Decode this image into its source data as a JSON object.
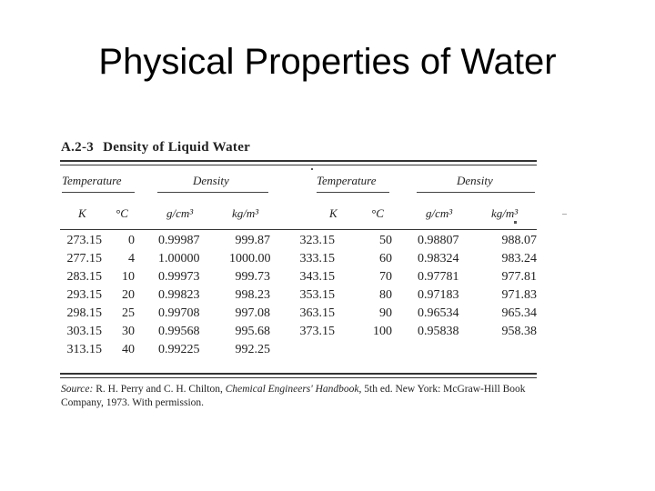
{
  "slide": {
    "title": "Physical Properties of Water"
  },
  "table": {
    "number": "A.2-3",
    "title": "Density of Liquid Water",
    "group_headers": [
      "Temperature",
      "Density",
      "Temperature",
      "Density"
    ],
    "unit_headers": [
      "K",
      "°C",
      "g/cm³",
      "kg/m³",
      "K",
      "°C",
      "g/cm³",
      "kg/m³"
    ],
    "rows": [
      [
        "273.15",
        "0",
        "0.99987",
        "999.87",
        "323.15",
        "50",
        "0.98807",
        "988.07"
      ],
      [
        "277.15",
        "4",
        "1.00000",
        "1000.00",
        "333.15",
        "60",
        "0.98324",
        "983.24"
      ],
      [
        "283.15",
        "10",
        "0.99973",
        "999.73",
        "343.15",
        "70",
        "0.97781",
        "977.81"
      ],
      [
        "293.15",
        "20",
        "0.99823",
        "998.23",
        "353.15",
        "80",
        "0.97183",
        "971.83"
      ],
      [
        "298.15",
        "25",
        "0.99708",
        "997.08",
        "363.15",
        "90",
        "0.96534",
        "965.34"
      ],
      [
        "303.15",
        "30",
        "0.99568",
        "995.68",
        "373.15",
        "100",
        "0.95838",
        "958.38"
      ],
      [
        "313.15",
        "40",
        "0.99225",
        "992.25",
        "",
        "",
        "",
        ""
      ]
    ],
    "source": {
      "label": "Source:",
      "before": "R. H. Perry and C. H. Chilton,",
      "book": "Chemical Engineers' Handbook,",
      "after": "5th ed. New York: McGraw-Hill Book Company, 1973. With permission."
    }
  }
}
